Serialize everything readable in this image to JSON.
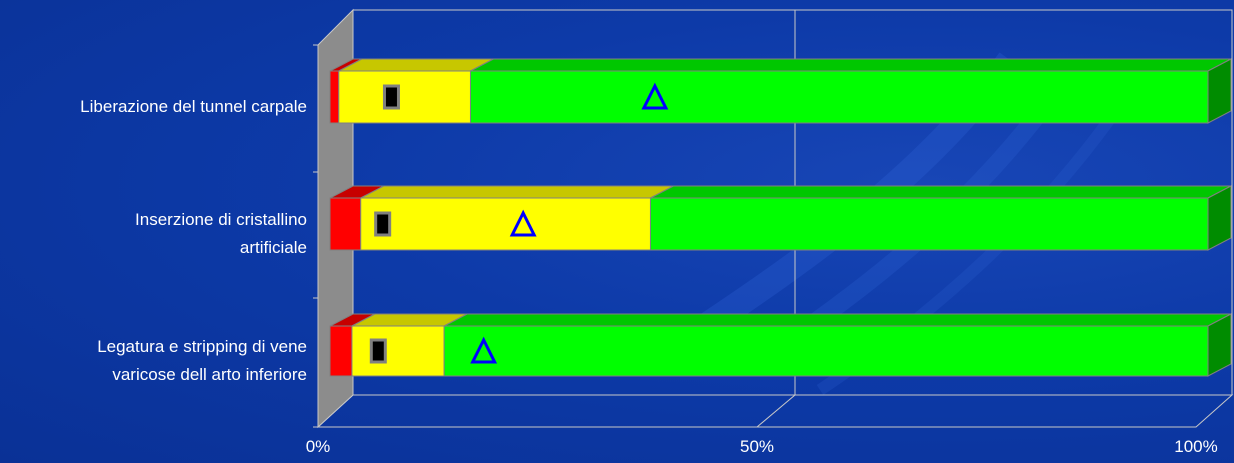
{
  "chart_data": {
    "type": "bar",
    "stacked": "percent",
    "three_d": true,
    "categories": [
      "Liberazione del tunnel carpale",
      "Inserzione di cristallino artificiale",
      "Legatura e stripping di vene varicose dell arto inferiore"
    ],
    "category_lines": [
      [
        "Liberazione del tunnel carpale"
      ],
      [
        "Inserzione di cristallino",
        "artificiale"
      ],
      [
        "Legatura e stripping di vene",
        "varicose dell arto inferiore"
      ]
    ],
    "series": [
      {
        "color": "#ff0000",
        "values": [
          1,
          3.5,
          2.5
        ]
      },
      {
        "color": "#ffff00",
        "values": [
          15,
          33,
          10.5
        ]
      },
      {
        "color": "#00ff00",
        "values": [
          84,
          63.5,
          87
        ]
      }
    ],
    "markers": [
      {
        "shape": "square",
        "color": "#000000",
        "values": [
          7,
          6,
          5.5
        ]
      },
      {
        "shape": "triangle",
        "color": "#0000ff",
        "values": [
          37,
          22,
          17.5
        ]
      }
    ],
    "xlim": [
      0,
      100
    ],
    "xticks": [
      "0%",
      "50%",
      "100%"
    ],
    "grid": true,
    "legend": "none"
  }
}
